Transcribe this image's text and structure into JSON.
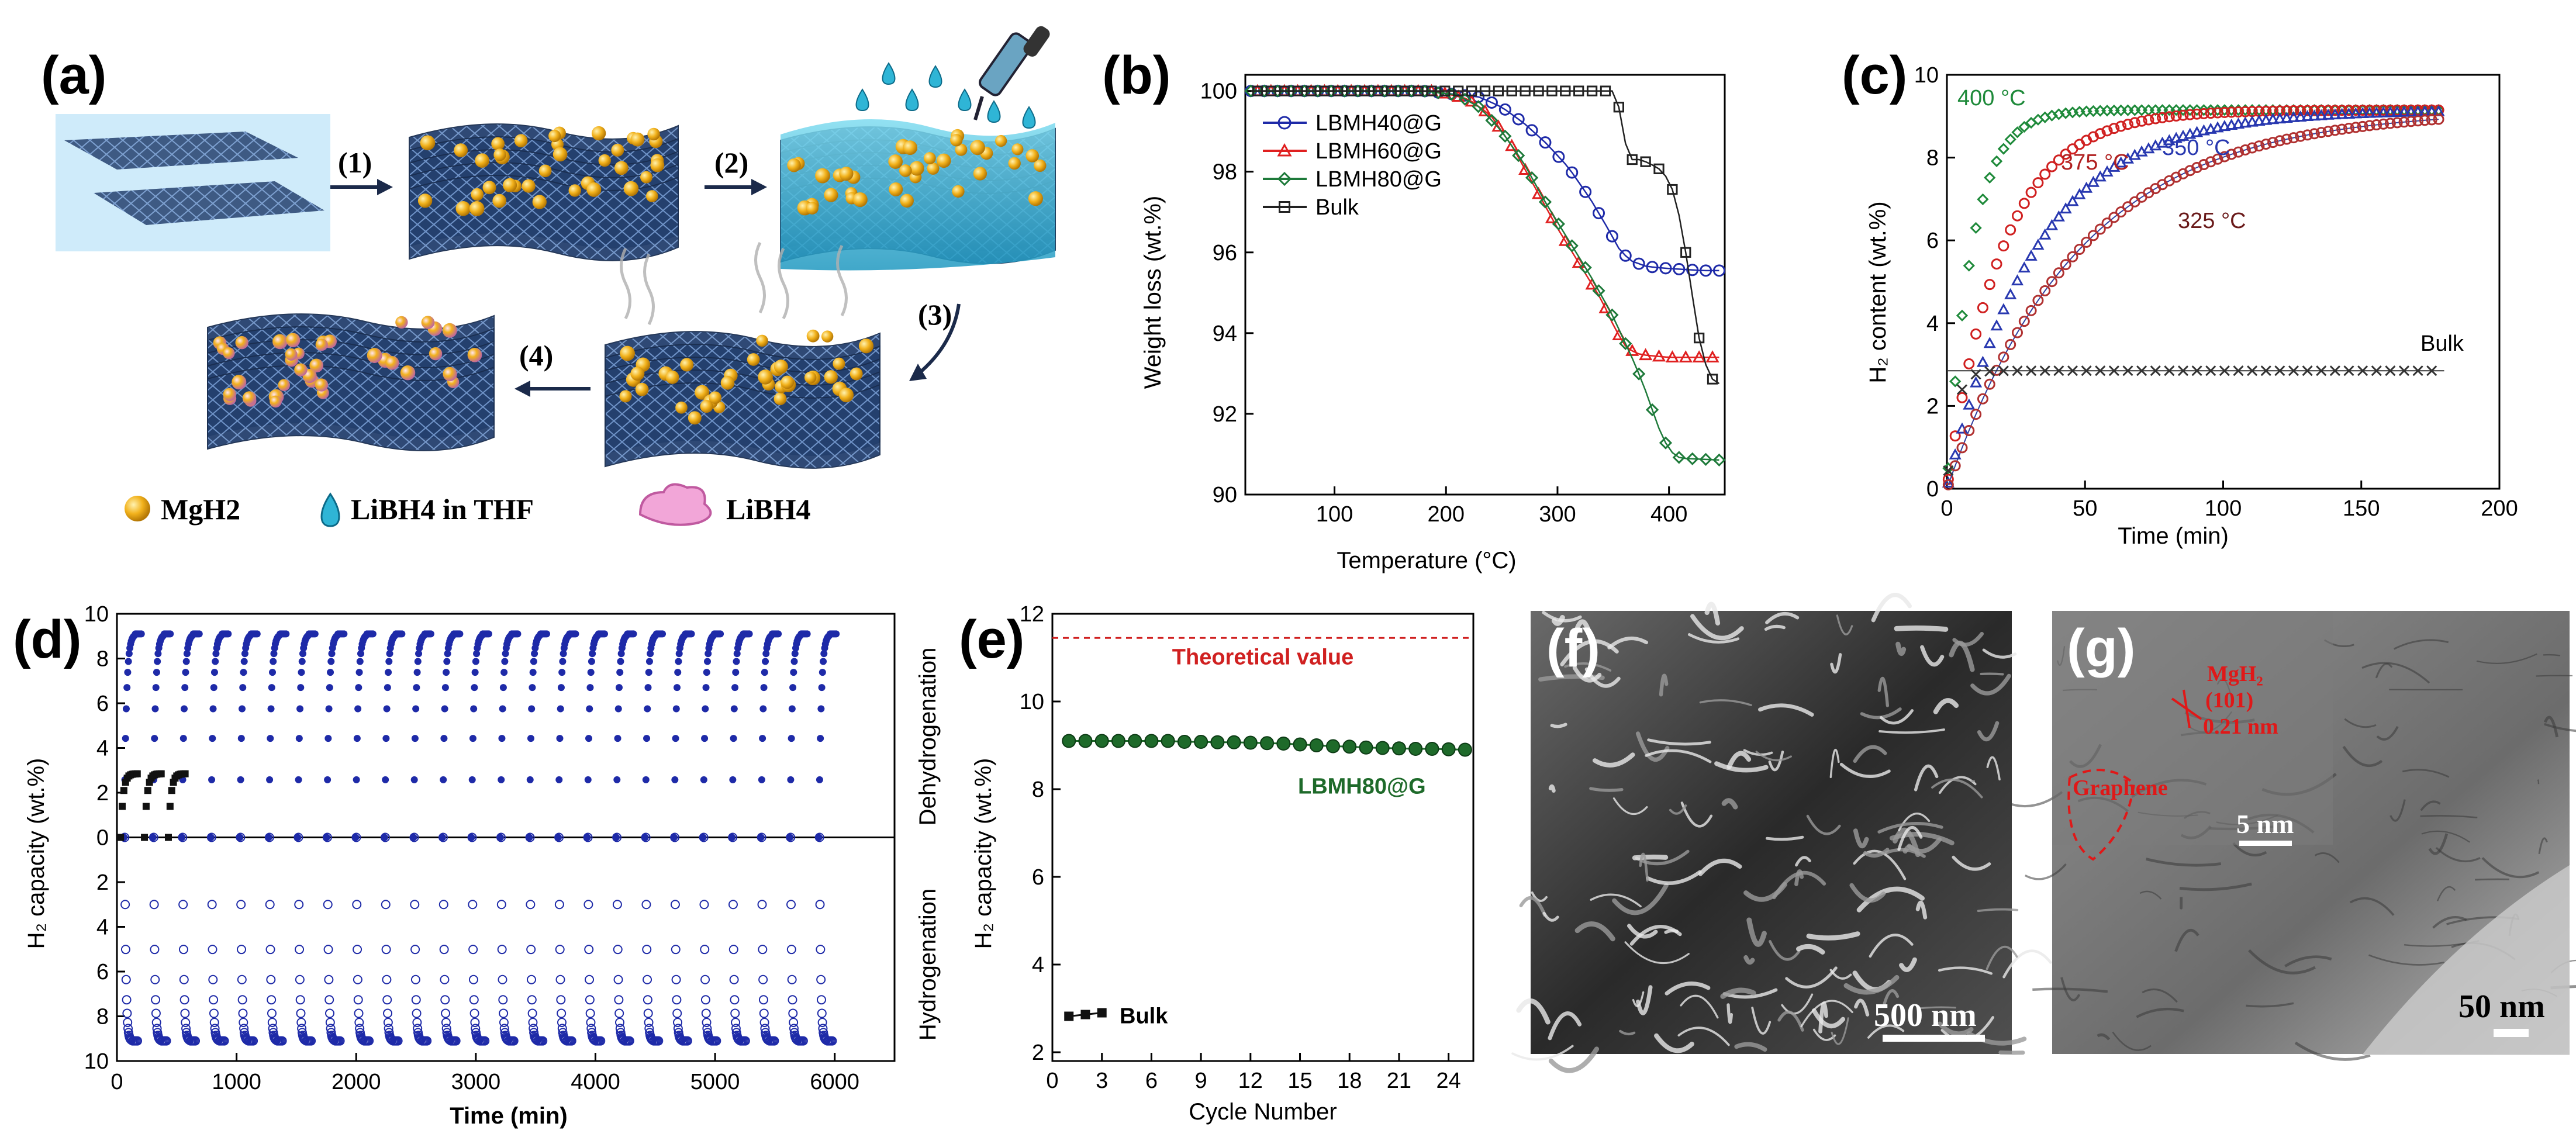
{
  "figure": {
    "panels": {
      "a": "(a)",
      "b": "(b)",
      "c": "(c)",
      "d": "(d)",
      "e": "(e)",
      "f": "(f)",
      "g": "(g)"
    },
    "schematic": {
      "steps": [
        "(1)",
        "(2)",
        "(3)",
        "(4)"
      ],
      "legend": [
        "MgH2",
        "LiBH4 in THF",
        "LiBH4"
      ],
      "colors": {
        "sheet": "#2c4a78",
        "particle": "#f2b21c",
        "liquid": "#2fb5d6",
        "libh4": "#e87ac8"
      }
    },
    "images": {
      "f": {
        "scalebar": "500 nm"
      },
      "g": {
        "mgh2_label": [
          "MgH₂",
          "(101)",
          "0.21 nm"
        ],
        "graphene": "Graphene",
        "inset_scale": "5 nm",
        "scale": "50 nm"
      }
    }
  },
  "chart_data": [
    {
      "panel": "b",
      "type": "scatter",
      "xlabel": "Temperature (°C)",
      "ylabel": "Weight loss (wt.%)",
      "xlim": [
        20,
        450
      ],
      "ylim": [
        90,
        100.4
      ],
      "xticks": [
        100,
        200,
        300,
        400
      ],
      "yticks": [
        90,
        92,
        94,
        96,
        98,
        100
      ],
      "legend_position": "top-left",
      "series": [
        {
          "name": "LBMH40@G",
          "color": "#1e2aa8",
          "marker": "circle",
          "x": [
            25,
            180,
            230,
            250,
            270,
            290,
            310,
            330,
            345,
            355,
            365,
            380,
            400,
            430,
            450
          ],
          "y": [
            100,
            100,
            99.85,
            99.6,
            99.2,
            98.7,
            98.1,
            97.3,
            96.6,
            96.1,
            95.8,
            95.65,
            95.6,
            95.55,
            95.55
          ]
        },
        {
          "name": "LBMH60@G",
          "color": "#e02020",
          "marker": "triangle",
          "x": [
            25,
            190,
            220,
            240,
            260,
            280,
            300,
            320,
            340,
            350,
            360,
            370,
            380,
            400,
            450
          ],
          "y": [
            100,
            100,
            99.8,
            99.4,
            98.6,
            97.6,
            96.6,
            95.7,
            94.8,
            94.2,
            93.7,
            93.5,
            93.45,
            93.4,
            93.4
          ]
        },
        {
          "name": "LBMH80@G",
          "color": "#1e7a3a",
          "marker": "diamond",
          "x": [
            25,
            180,
            210,
            230,
            250,
            270,
            290,
            310,
            330,
            350,
            360,
            370,
            380,
            390,
            400,
            410,
            450
          ],
          "y": [
            100,
            100,
            99.9,
            99.6,
            99.0,
            98.2,
            97.2,
            96.3,
            95.4,
            94.4,
            93.8,
            93.2,
            92.5,
            91.7,
            91.1,
            90.9,
            90.85
          ]
        },
        {
          "name": "Bulk",
          "color": "#222222",
          "marker": "square",
          "x": [
            25,
            350,
            355,
            360,
            365,
            375,
            390,
            400,
            405,
            410,
            415,
            420,
            425,
            430,
            440,
            450
          ],
          "y": [
            100,
            100,
            99.6,
            98.8,
            98.3,
            98.3,
            98.1,
            97.8,
            97.4,
            96.8,
            96.0,
            95.1,
            94.2,
            93.4,
            92.8,
            92.7
          ]
        }
      ]
    },
    {
      "panel": "c",
      "type": "scatter",
      "xlabel": "Time (min)",
      "ylabel": "H₂ content (wt.%)",
      "xlim": [
        0,
        200
      ],
      "ylim": [
        0,
        10
      ],
      "xticks": [
        0,
        50,
        100,
        150,
        200
      ],
      "yticks": [
        0,
        2,
        4,
        6,
        8,
        10
      ],
      "annotations": [
        "400 °C",
        "375 °C",
        "350 °C",
        "325 °C",
        "Bulk"
      ],
      "series": [
        {
          "name": "400 °C",
          "color": "#1e8a3a",
          "marker": "diamond",
          "plateau": 9.15,
          "tau": 9,
          "tmax": 180
        },
        {
          "name": "375 °C",
          "color": "#d02020",
          "marker": "circle",
          "plateau": 9.15,
          "tau": 20,
          "tmax": 180
        },
        {
          "name": "350 °C",
          "color": "#2838b0",
          "marker": "triangle",
          "plateau": 9.15,
          "tau": 32,
          "tmax": 180
        },
        {
          "name": "325 °C",
          "color": "#b03030",
          "marker": "circle",
          "plateau": 9.15,
          "tau": 48,
          "tmax": 180
        },
        {
          "name": "Bulk",
          "color": "#333333",
          "marker": "cross",
          "plateau": 2.85,
          "tau": 3,
          "tmax": 180
        }
      ]
    },
    {
      "panel": "d",
      "type": "scatter",
      "xlabel": "Time (min)",
      "ylabel": "H₂ capacity (wt.%)",
      "xlim": [
        0,
        6500
      ],
      "ylim": [
        0,
        10
      ],
      "xticks": [
        0,
        1000,
        2000,
        3000,
        4000,
        5000,
        6000
      ],
      "yticks": [
        0,
        2,
        4,
        6,
        8,
        10
      ],
      "side_labels": [
        "Dehydrogenation",
        "Hydrogenation"
      ],
      "cycles": 25,
      "cycle_period": 242,
      "de_plateau": 9.1,
      "hy_plateau": 9.1,
      "bulk_cycles": 3,
      "bulk_plateau": 2.85,
      "color": "#1e2aa8"
    },
    {
      "panel": "e",
      "type": "scatter",
      "xlabel": "Cycle Number",
      "ylabel": "H₂ capacity (wt.%)",
      "xlim": [
        0,
        25.5
      ],
      "ylim": [
        1.8,
        12
      ],
      "xticks": [
        0,
        3,
        6,
        9,
        12,
        15,
        18,
        21,
        24
      ],
      "yticks": [
        2,
        4,
        6,
        8,
        10,
        12
      ],
      "reference": {
        "label": "Theoretical value",
        "value": 11.45,
        "color": "#d02020"
      },
      "series": [
        {
          "name": "LBMH80@G",
          "color": "#1e6a2a",
          "x": [
            1,
            2,
            3,
            4,
            5,
            6,
            7,
            8,
            9,
            10,
            11,
            12,
            13,
            14,
            15,
            16,
            17,
            18,
            19,
            20,
            21,
            22,
            23,
            24,
            25
          ],
          "y": [
            9.1,
            9.1,
            9.1,
            9.1,
            9.1,
            9.1,
            9.1,
            9.08,
            9.08,
            9.07,
            9.07,
            9.06,
            9.05,
            9.04,
            9.02,
            9.0,
            8.98,
            8.97,
            8.95,
            8.94,
            8.93,
            8.92,
            8.92,
            8.91,
            8.9
          ]
        },
        {
          "name": "Bulk",
          "color": "#111111",
          "x": [
            1,
            2,
            3
          ],
          "y": [
            2.82,
            2.86,
            2.9
          ]
        }
      ]
    }
  ]
}
